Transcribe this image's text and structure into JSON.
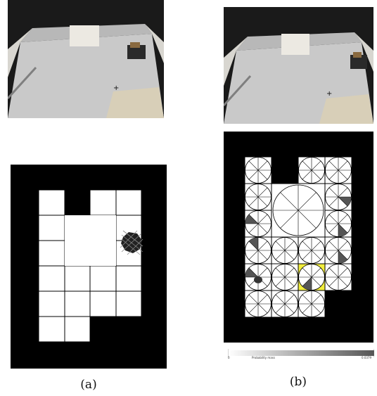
{
  "figure": {
    "panel_a": {
      "caption": "(a)"
    },
    "panel_b": {
      "caption": "(b)",
      "colorbar": {
        "label": "Probability mass",
        "min_label": "0",
        "max_label": "0.0379"
      }
    }
  },
  "colors": {
    "background": "#000000",
    "free_cell": "#ffffff",
    "grid_line": "#000000",
    "highlight": "#f2ee3c",
    "wedge_dark": "#555555"
  }
}
